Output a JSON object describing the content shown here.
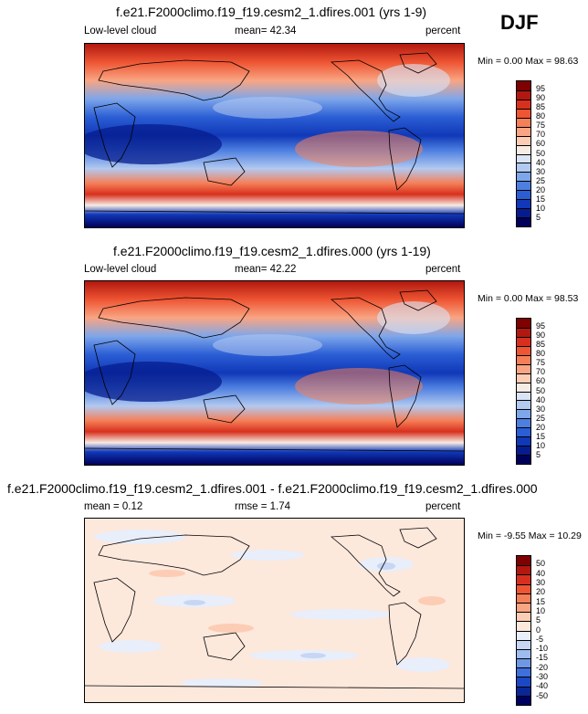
{
  "season": "DJF",
  "panels": [
    {
      "title": "f.e21.F2000climo.f19_f19.cesm2_1.dfires.001 (yrs 1-9)",
      "left_label": "Low-level cloud",
      "mean_label": "mean=  42.34",
      "units": "percent",
      "minmax": "Min =   0.00 Max =  98.63",
      "colorbar": {
        "levels": [
          "95",
          "90",
          "85",
          "80",
          "75",
          "70",
          "60",
          "50",
          "40",
          "30",
          "25",
          "20",
          "15",
          "10",
          "5"
        ],
        "colors": [
          "#7f0000",
          "#b2180f",
          "#d8301e",
          "#ee5533",
          "#f57f58",
          "#f9a583",
          "#fccdb4",
          "#f7ece4",
          "#d9e4f6",
          "#b2c9f0",
          "#7ea6ea",
          "#4d7fe0",
          "#2b5ed5",
          "#1038b8",
          "#061c8e",
          "#00005a"
        ]
      }
    },
    {
      "title": "f.e21.F2000climo.f19_f19.cesm2_1.dfires.000 (yrs 1-19)",
      "left_label": "Low-level cloud",
      "mean_label": "mean=  42.22",
      "units": "percent",
      "minmax": "Min =   0.00 Max =  98.53",
      "colorbar": {
        "levels": [
          "95",
          "90",
          "85",
          "80",
          "75",
          "70",
          "60",
          "50",
          "40",
          "30",
          "25",
          "20",
          "15",
          "10",
          "5"
        ],
        "colors": [
          "#7f0000",
          "#b2180f",
          "#d8301e",
          "#ee5533",
          "#f57f58",
          "#f9a583",
          "#fccdb4",
          "#f7ece4",
          "#d9e4f6",
          "#b2c9f0",
          "#7ea6ea",
          "#4d7fe0",
          "#2b5ed5",
          "#1038b8",
          "#061c8e",
          "#00005a"
        ]
      }
    },
    {
      "title": "f.e21.F2000climo.f19_f19.cesm2_1.dfires.001 - f.e21.F2000climo.f19_f19.cesm2_1.dfires.000",
      "left_label": "mean =   0.12",
      "mean_label": "rmse =   1.74",
      "units": "percent",
      "minmax": "Min = -9.55 Max = 10.29",
      "colorbar": {
        "levels": [
          "50",
          "40",
          "30",
          "20",
          "15",
          "10",
          "5",
          "0",
          "-5",
          "-10",
          "-15",
          "-20",
          "-30",
          "-40",
          "-50"
        ],
        "colors": [
          "#7f0000",
          "#b2180f",
          "#d8301e",
          "#ee5533",
          "#f57f58",
          "#f9a583",
          "#fccdb4",
          "#fde8dc",
          "#e8eefa",
          "#c6d6f3",
          "#9ebcee",
          "#6f98e6",
          "#3f6fdc",
          "#1c48c4",
          "#0a2796",
          "#000060"
        ]
      }
    }
  ]
}
